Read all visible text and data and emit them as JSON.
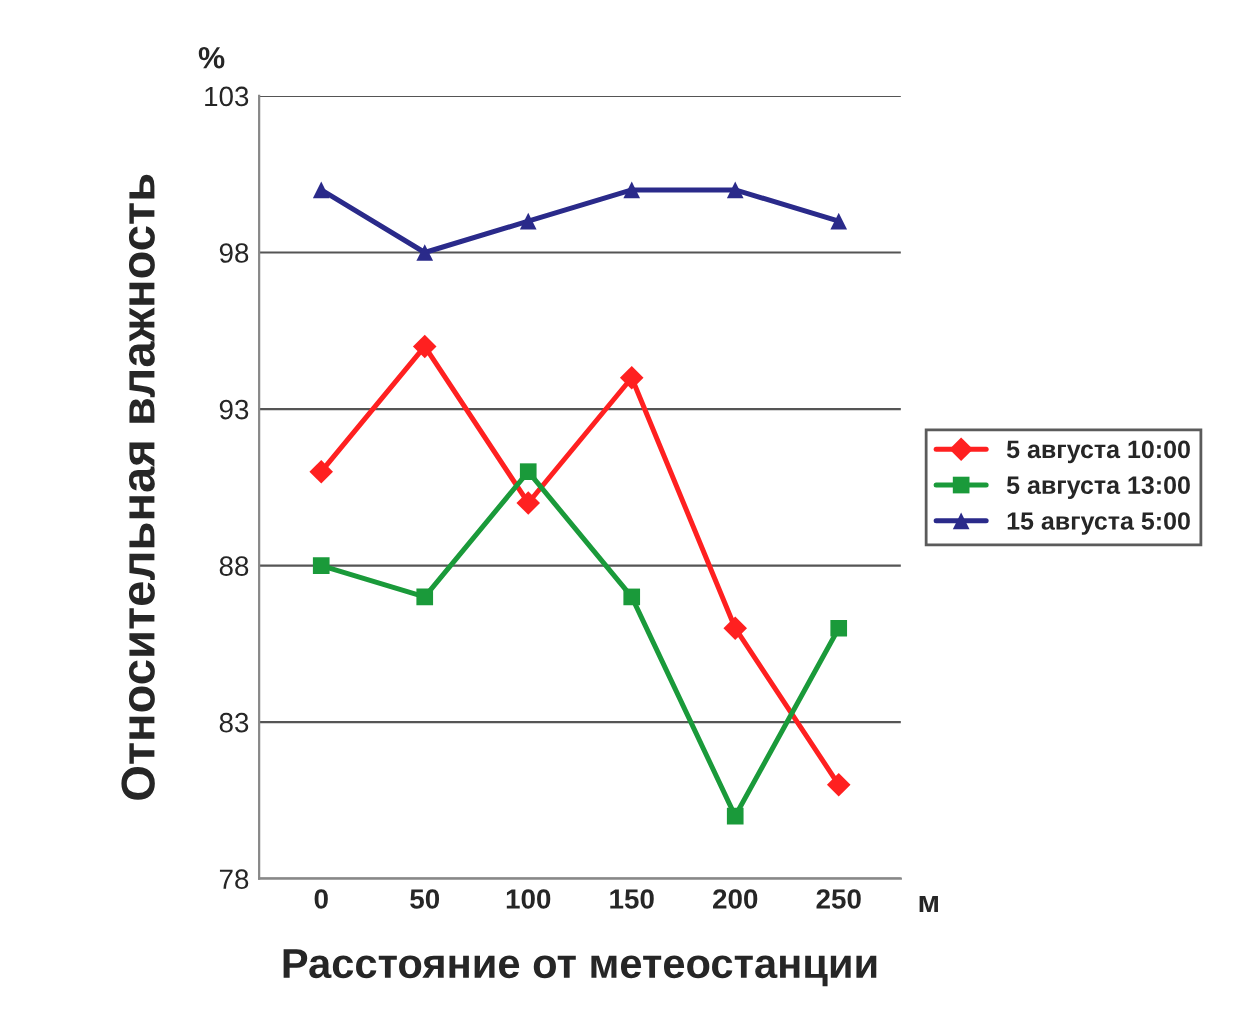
{
  "chart_data": {
    "type": "line",
    "xlabel": "Расстояние от метеостанции",
    "ylabel": "Относительная влажность",
    "annotations": [
      "%",
      "м"
    ],
    "categories": [
      "0",
      "50",
      "100",
      "150",
      "200",
      "250"
    ],
    "series": [
      {
        "name": "5 августа 10:00",
        "color": "#ff2020",
        "marker": "diamond",
        "values": [
          91,
          95,
          90,
          94,
          86,
          81
        ]
      },
      {
        "name": "5 августа 13:00",
        "color": "#1a9a3a",
        "marker": "square",
        "values": [
          88,
          87,
          91,
          87,
          80,
          86
        ]
      },
      {
        "name": "15 августа 5:00",
        "color": "#2a2a8a",
        "marker": "triangle",
        "values": [
          100,
          98,
          99,
          100,
          100,
          99
        ]
      }
    ],
    "ylim": [
      78,
      103
    ],
    "yticks": [
      78,
      83,
      88,
      93,
      98,
      103
    ],
    "grid": "y",
    "legend": "right",
    "line_style": "solid"
  }
}
